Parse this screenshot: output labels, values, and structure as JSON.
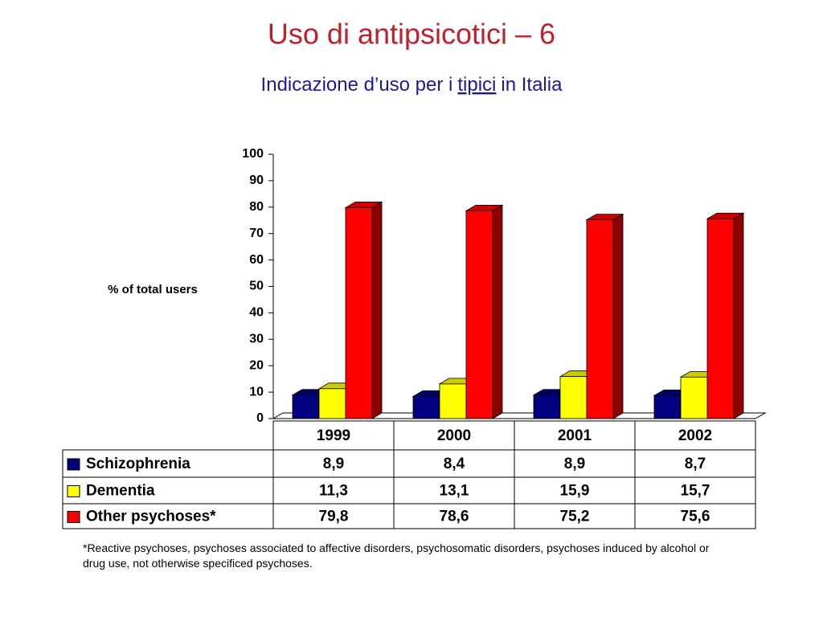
{
  "chart_data": {
    "type": "bar3d",
    "title": "Uso di antipsicotici – 6",
    "subtitle": [
      "Indicazione d’uso per i",
      "tipici",
      "in Italia"
    ],
    "subtitle_underlined": 1,
    "ylabel": "% of total users",
    "categories": [
      "1999",
      "2000",
      "2001",
      "2002"
    ],
    "series": [
      {
        "name": "Schizophrenia",
        "color": "#000080",
        "values": [
          8.9,
          8.4,
          8.9,
          8.7
        ],
        "value_labels": [
          "8,9",
          "8,4",
          "8,9",
          "8,7"
        ]
      },
      {
        "name": "Dementia",
        "color": "#ffff00",
        "values": [
          11.3,
          13.1,
          15.9,
          15.7
        ],
        "value_labels": [
          "11,3",
          "13,1",
          "15,9",
          "15,7"
        ]
      },
      {
        "name": "Other psychoses*",
        "color": "#ff0000",
        "values": [
          79.8,
          78.6,
          75.2,
          75.6
        ],
        "value_labels": [
          "79,8",
          "78,6",
          "75,2",
          "75,6"
        ]
      }
    ],
    "ylim": [
      0,
      100
    ],
    "yticks": [
      0,
      10,
      20,
      30,
      40,
      50,
      60,
      70,
      80,
      90,
      100
    ],
    "footnote": "*Reactive psychoses, psychoses associated to affective disorders, psychosomatic disorders, psychoses induced by alcohol or drug use, not otherwise specificed psychoses."
  }
}
